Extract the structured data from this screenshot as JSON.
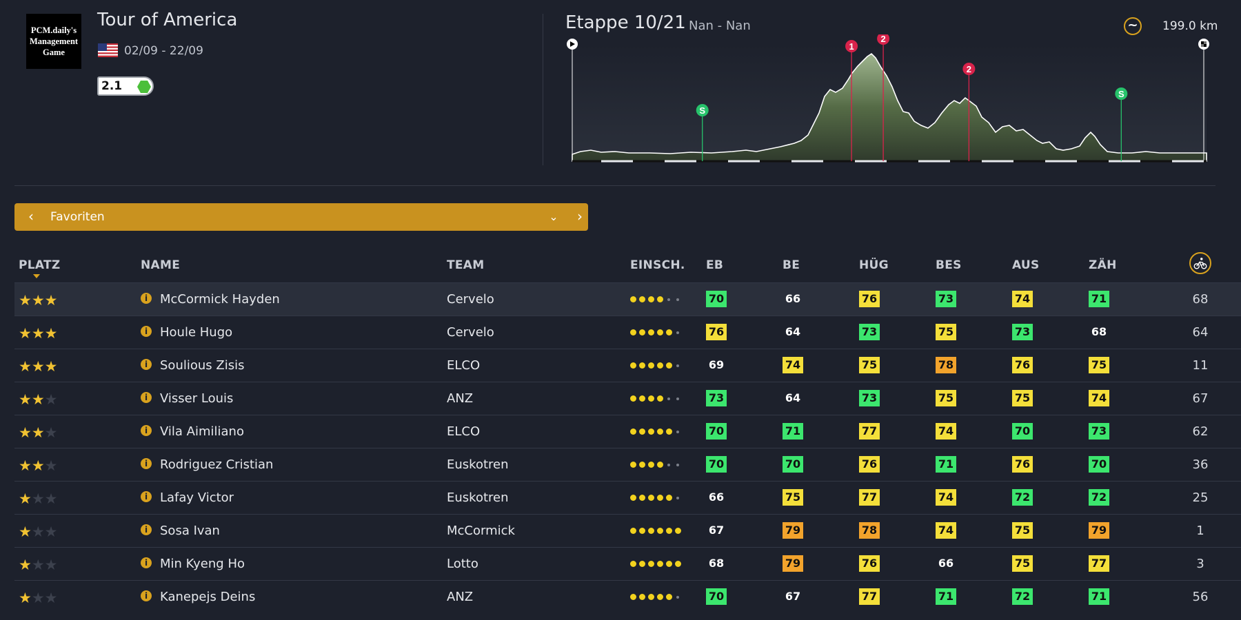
{
  "race": {
    "logo_text": "PCM.daily's Management Game",
    "title": "Tour of America",
    "dates": "02/09 - 22/09",
    "country_flag": "us-flag",
    "class": "2.1",
    "class_color": "#4bbf3a"
  },
  "stage": {
    "title": "Etappe 10/21",
    "route": "Nan - Nan",
    "profile_icon": "hilly-profile-icon",
    "distance": "199.0 km",
    "markers": [
      {
        "type": "sprint",
        "label": "S",
        "km": 41
      },
      {
        "type": "climb",
        "label": "1",
        "km": 88
      },
      {
        "type": "climb",
        "label": "2",
        "km": 98
      },
      {
        "type": "climb",
        "label": "2",
        "km": 125
      },
      {
        "type": "sprint",
        "label": "S",
        "km": 173
      }
    ]
  },
  "selector": {
    "label": "Favoriten"
  },
  "table": {
    "headers": {
      "platz": "PLATZ",
      "name": "NAME",
      "team": "TEAM",
      "einsch": "EINSCH.",
      "eb": "EB",
      "be": "BE",
      "hug": "HÜG",
      "bes": "BES",
      "aus": "AUS",
      "zah": "ZÄH"
    },
    "rows": [
      {
        "stars": 3,
        "name": "McCormick Hayden",
        "team": "Cervelo",
        "form": 4,
        "eb": "70",
        "be": "66",
        "hug": "76",
        "bes": "73",
        "aus": "74",
        "zah": "71",
        "last": "68"
      },
      {
        "stars": 3,
        "name": "Houle Hugo",
        "team": "Cervelo",
        "form": 5,
        "eb": "76",
        "be": "64",
        "hug": "73",
        "bes": "75",
        "aus": "73",
        "zah": "68",
        "last": "64"
      },
      {
        "stars": 3,
        "name": "Soulious Zisis",
        "team": "ELCO",
        "form": 5,
        "eb": "69",
        "be": "74",
        "hug": "75",
        "bes": "78",
        "aus": "76",
        "zah": "75",
        "last": "11"
      },
      {
        "stars": 2,
        "name": "Visser Louis",
        "team": "ANZ",
        "form": 4,
        "eb": "73",
        "be": "64",
        "hug": "73",
        "bes": "75",
        "aus": "75",
        "zah": "74",
        "last": "67"
      },
      {
        "stars": 2,
        "name": "Vila Aimiliano",
        "team": "ELCO",
        "form": 5,
        "eb": "70",
        "be": "71",
        "hug": "77",
        "bes": "74",
        "aus": "70",
        "zah": "73",
        "last": "62"
      },
      {
        "stars": 2,
        "name": "Rodriguez Cristian",
        "team": "Euskotren",
        "form": 4,
        "eb": "70",
        "be": "70",
        "hug": "76",
        "bes": "71",
        "aus": "76",
        "zah": "70",
        "last": "36"
      },
      {
        "stars": 1,
        "name": "Lafay Victor",
        "team": "Euskotren",
        "form": 5,
        "eb": "66",
        "be": "75",
        "hug": "77",
        "bes": "74",
        "aus": "72",
        "zah": "72",
        "last": "25"
      },
      {
        "stars": 1,
        "name": "Sosa Ivan",
        "team": "McCormick",
        "form": 6,
        "eb": "67",
        "be": "79",
        "hug": "78",
        "bes": "74",
        "aus": "75",
        "zah": "79",
        "last": "1"
      },
      {
        "stars": 1,
        "name": "Min Kyeng Ho",
        "team": "Lotto",
        "form": 6,
        "eb": "68",
        "be": "79",
        "hug": "76",
        "bes": "66",
        "aus": "75",
        "zah": "77",
        "last": "3"
      },
      {
        "stars": 1,
        "name": "Kanepejs Deins",
        "team": "ANZ",
        "form": 5,
        "eb": "70",
        "be": "67",
        "hug": "77",
        "bes": "71",
        "aus": "72",
        "zah": "71",
        "last": "56"
      }
    ],
    "cell_colors": {
      "green": "#3ce66e",
      "yellow": "#f4df3a",
      "orange": "#f2a32c"
    }
  }
}
